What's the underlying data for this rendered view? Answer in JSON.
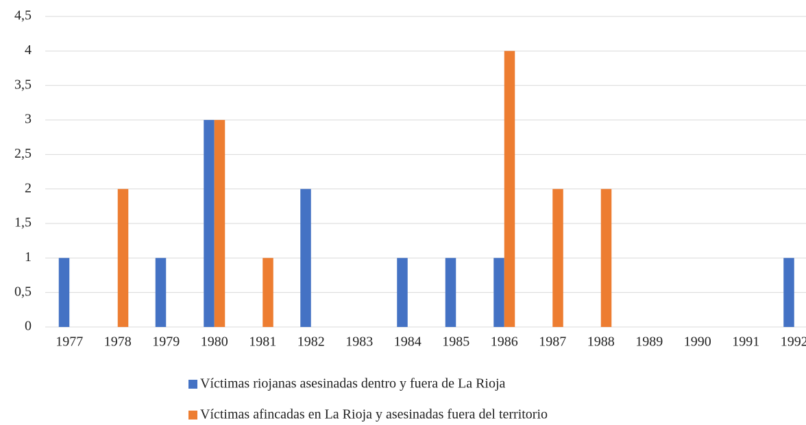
{
  "chart_data": {
    "type": "bar",
    "categories": [
      "1977",
      "1978",
      "1979",
      "1980",
      "1981",
      "1982",
      "1983",
      "1984",
      "1985",
      "1986",
      "1987",
      "1988",
      "1989",
      "1990",
      "1991",
      "1992"
    ],
    "series": [
      {
        "name": "Víctimas riojanas asesinadas dentro y fuera de La Rioja",
        "color": "#4472c4",
        "values": [
          1,
          0,
          1,
          3,
          0,
          2,
          0,
          1,
          1,
          1,
          0,
          0,
          0,
          0,
          0,
          1
        ]
      },
      {
        "name": "Víctimas afincadas en La Rioja y asesinadas fuera del territorio",
        "color": "#ed7d31",
        "values": [
          0,
          2,
          0,
          3,
          1,
          0,
          0,
          0,
          0,
          4,
          2,
          2,
          0,
          0,
          0,
          0
        ]
      }
    ],
    "ylim": [
      0,
      4.5
    ],
    "yticks": [
      0,
      {
        "value": 0.5,
        "label": "0,5"
      },
      1,
      {
        "value": 1.5,
        "label": "1,5"
      },
      2,
      {
        "value": 2.5,
        "label": "2,5"
      },
      3,
      {
        "value": 3.5,
        "label": "3,5"
      },
      4,
      {
        "value": 4.5,
        "label": "4,5"
      }
    ],
    "grid": true,
    "legend": "bottom"
  }
}
